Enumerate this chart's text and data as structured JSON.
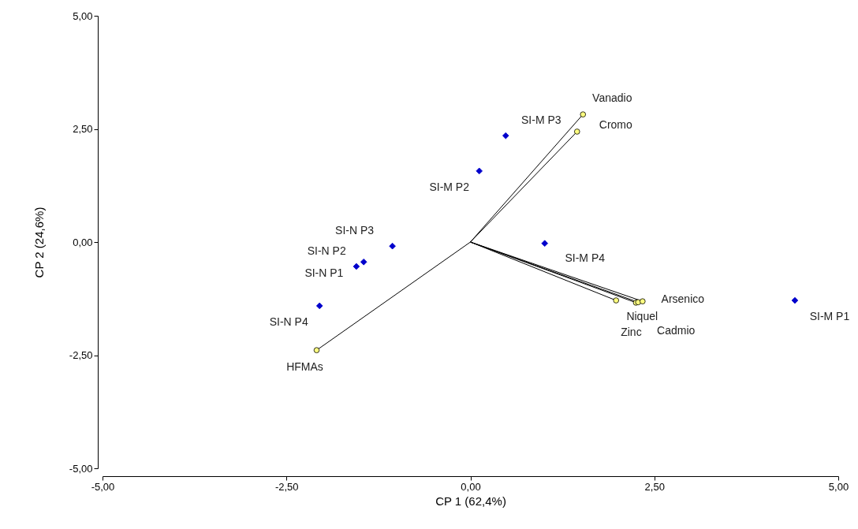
{
  "chart_data": {
    "type": "scatter",
    "xlabel": "CP 1 (62,4%)",
    "ylabel": "CP 2 (24,6%)",
    "xlim": [
      -5,
      5
    ],
    "ylim": [
      -5,
      5
    ],
    "xticks": [
      {
        "value": -5,
        "label": "-5,00"
      },
      {
        "value": -2.5,
        "label": "-2,50"
      },
      {
        "value": 0,
        "label": "0,00"
      },
      {
        "value": 2.5,
        "label": "2,50"
      },
      {
        "value": 5,
        "label": "5,00"
      }
    ],
    "yticks": [
      {
        "value": -5,
        "label": "-5,00"
      },
      {
        "value": -2.5,
        "label": "-2,50"
      },
      {
        "value": 0,
        "label": "0,00"
      },
      {
        "value": 2.5,
        "label": "2,50"
      },
      {
        "value": 5,
        "label": "5,00"
      }
    ],
    "grid": false,
    "series": [
      {
        "type": "line",
        "line_style": "solid",
        "color": "#000000",
        "x": [
          0,
          1.53,
          null,
          0,
          1.45,
          null,
          0,
          1.98,
          null,
          0,
          2.25,
          null,
          0,
          2.28,
          null,
          0,
          2.34,
          null,
          0,
          -2.09
        ],
        "values": [
          0,
          2.82,
          null,
          0,
          2.44,
          null,
          0,
          -1.29,
          null,
          0,
          -1.34,
          null,
          0,
          -1.33,
          null,
          0,
          -1.31,
          null,
          0,
          -2.39
        ]
      },
      {
        "marker": "circle",
        "color": "#ffff80",
        "x": [
          1.53,
          1.45,
          1.98,
          2.25,
          2.28,
          2.34,
          -2.09
        ],
        "values": [
          2.82,
          2.44,
          -1.29,
          -1.34,
          -1.33,
          -1.31,
          -2.39
        ]
      },
      {
        "marker": "diamond",
        "color": "#0000cc",
        "x": [
          0.48,
          0.12,
          -1.06,
          -1.45,
          -1.55,
          -2.05,
          1.01,
          4.41
        ],
        "values": [
          2.35,
          1.57,
          -0.09,
          -0.44,
          -0.54,
          -1.41,
          -0.03,
          -1.29
        ]
      }
    ],
    "annotations": [
      {
        "text": "SI-M P3",
        "x": 0.48,
        "y": 2.35
      },
      {
        "text": "SI-M P2",
        "x": 0.12,
        "y": 1.57
      },
      {
        "text": "SI-N P3",
        "x": -1.06,
        "y": -0.09
      },
      {
        "text": "SI-N P2",
        "x": -1.45,
        "y": -0.44
      },
      {
        "text": "SI-N P1",
        "x": -1.55,
        "y": -0.54
      },
      {
        "text": "SI-N P4",
        "x": -2.05,
        "y": -1.41
      },
      {
        "text": "SI-M P4",
        "x": 1.01,
        "y": -0.03
      },
      {
        "text": "SI-M P1",
        "x": 4.41,
        "y": -1.29
      },
      {
        "text": "Vanadio",
        "x": 1.53,
        "y": 2.82
      },
      {
        "text": "Cromo",
        "x": 1.45,
        "y": 2.44
      },
      {
        "text": "Niquel",
        "x": 1.98,
        "y": -1.29
      },
      {
        "text": "Zinc",
        "x": 2.25,
        "y": -1.34
      },
      {
        "text": "Cadmio",
        "x": 2.28,
        "y": -1.33
      },
      {
        "text": "Arsenico",
        "x": 2.34,
        "y": -1.31
      },
      {
        "text": "HFMAs",
        "x": -2.09,
        "y": -2.39
      }
    ]
  }
}
